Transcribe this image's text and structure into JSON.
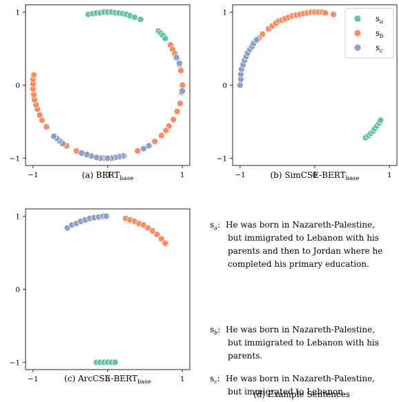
{
  "colors": {
    "sa": "#66c2a5",
    "sb": "#fc8d62",
    "sc": "#8da0cb"
  },
  "legend": [
    {
      "key": "sa",
      "base": "s",
      "sub": "a"
    },
    {
      "key": "sb",
      "base": "s",
      "sub": "b"
    },
    {
      "key": "sc",
      "base": "s",
      "sub": "c"
    }
  ],
  "chart_data": [
    {
      "type": "scatter",
      "caption": {
        "prefix": "(a) BERT",
        "sub": "base"
      },
      "xlim": [
        -1.1,
        1.1
      ],
      "ylim": [
        -1.1,
        1.1
      ],
      "xticks": [
        -1,
        0,
        1
      ],
      "yticks": [
        -1,
        0,
        1
      ],
      "grid": false,
      "legend": null,
      "series": [
        {
          "key": "sa",
          "points": [
            [
              -0.26,
              0.97
            ],
            [
              -0.2,
              0.98
            ],
            [
              -0.15,
              0.99
            ],
            [
              -0.1,
              0.99
            ],
            [
              -0.05,
              1.0
            ],
            [
              0.0,
              1.0
            ],
            [
              0.05,
              1.0
            ],
            [
              0.1,
              0.99
            ],
            [
              0.15,
              0.99
            ],
            [
              0.2,
              0.98
            ],
            [
              0.25,
              0.97
            ],
            [
              0.3,
              0.95
            ],
            [
              0.36,
              0.93
            ],
            [
              0.44,
              0.9
            ],
            [
              0.68,
              0.74
            ],
            [
              0.71,
              0.71
            ],
            [
              0.74,
              0.68
            ],
            [
              0.77,
              0.64
            ]
          ]
        },
        {
          "key": "sb",
          "points": [
            [
              0.84,
              0.55
            ],
            [
              0.87,
              0.49
            ],
            [
              0.9,
              0.43
            ],
            [
              0.93,
              0.37
            ],
            [
              0.96,
              0.28
            ],
            [
              0.98,
              0.2
            ],
            [
              1.0,
              0.0
            ],
            [
              0.99,
              -0.1
            ],
            [
              0.97,
              -0.25
            ],
            [
              0.93,
              -0.36
            ],
            [
              0.88,
              -0.47
            ],
            [
              0.82,
              -0.56
            ],
            [
              0.78,
              -0.62
            ],
            [
              0.72,
              -0.69
            ],
            [
              0.63,
              -0.77
            ],
            [
              0.55,
              -0.83
            ],
            [
              0.48,
              -0.87
            ],
            [
              0.4,
              -0.9
            ],
            [
              0.22,
              -0.97
            ],
            [
              -0.05,
              -1.0
            ],
            [
              -0.42,
              -0.9
            ],
            [
              -0.55,
              -0.83
            ],
            [
              -0.62,
              -0.78
            ],
            [
              -0.82,
              -0.57
            ],
            [
              -0.88,
              -0.48
            ],
            [
              -0.91,
              -0.41
            ],
            [
              -0.94,
              -0.33
            ],
            [
              -0.96,
              -0.27
            ],
            [
              -0.98,
              -0.2
            ],
            [
              -0.99,
              -0.13
            ],
            [
              -1.0,
              -0.05
            ],
            [
              -1.0,
              0.02
            ],
            [
              -1.0,
              0.08
            ],
            [
              -0.99,
              0.14
            ]
          ]
        },
        {
          "key": "sc",
          "points": [
            [
              0.96,
              0.3
            ],
            [
              1.0,
              -0.08
            ],
            [
              0.92,
              0.38
            ],
            [
              0.55,
              -0.83
            ],
            [
              0.48,
              -0.87
            ],
            [
              0.2,
              -0.97
            ],
            [
              0.15,
              -0.98
            ],
            [
              0.1,
              -0.99
            ],
            [
              0.05,
              -1.0
            ],
            [
              0.0,
              -1.0
            ],
            [
              -0.1,
              -1.0
            ],
            [
              -0.15,
              -0.99
            ],
            [
              -0.22,
              -0.97
            ],
            [
              -0.28,
              -0.95
            ],
            [
              -0.35,
              -0.93
            ],
            [
              -0.6,
              -0.8
            ],
            [
              -0.65,
              -0.76
            ],
            [
              -0.68,
              -0.73
            ],
            [
              -0.72,
              -0.7
            ]
          ]
        }
      ]
    },
    {
      "type": "scatter",
      "caption": {
        "prefix": "(b) SimCSE-BERT",
        "sub": "base"
      },
      "xlim": [
        -1.1,
        1.1
      ],
      "ylim": [
        -1.1,
        1.1
      ],
      "xticks": [
        -1,
        0,
        1
      ],
      "yticks": [
        -1,
        0,
        1
      ],
      "grid": false,
      "legend": "top-right",
      "series": [
        {
          "key": "sa",
          "points": [
            [
              0.68,
              -0.72
            ],
            [
              0.72,
              -0.69
            ],
            [
              0.75,
              -0.66
            ],
            [
              0.78,
              -0.63
            ],
            [
              0.8,
              -0.6
            ],
            [
              0.83,
              -0.56
            ],
            [
              0.86,
              -0.52
            ],
            [
              0.88,
              -0.48
            ]
          ]
        },
        {
          "key": "sb",
          "points": [
            [
              -0.75,
              0.64
            ],
            [
              -0.7,
              0.7
            ],
            [
              -0.62,
              0.77
            ],
            [
              -0.57,
              0.81
            ],
            [
              -0.52,
              0.85
            ],
            [
              -0.48,
              0.88
            ],
            [
              -0.44,
              0.89
            ],
            [
              -0.4,
              0.91
            ],
            [
              -0.35,
              0.93
            ],
            [
              -0.3,
              0.95
            ],
            [
              -0.25,
              0.96
            ],
            [
              -0.2,
              0.97
            ],
            [
              -0.15,
              0.98
            ],
            [
              -0.1,
              0.99
            ],
            [
              -0.05,
              1.0
            ],
            [
              0.0,
              1.0
            ],
            [
              0.05,
              1.0
            ],
            [
              0.1,
              1.0
            ],
            [
              0.14,
              0.99
            ],
            [
              0.25,
              0.97
            ]
          ]
        },
        {
          "key": "sc",
          "points": [
            [
              -1.0,
              0.0
            ],
            [
              -0.99,
              0.08
            ],
            [
              -0.99,
              0.15
            ],
            [
              -0.98,
              0.22
            ],
            [
              -0.96,
              0.28
            ],
            [
              -0.94,
              0.34
            ],
            [
              -0.92,
              0.39
            ],
            [
              -0.9,
              0.44
            ],
            [
              -0.87,
              0.49
            ],
            [
              -0.84,
              0.53
            ],
            [
              -0.82,
              0.57
            ],
            [
              -0.78,
              0.62
            ]
          ]
        }
      ]
    },
    {
      "type": "scatter",
      "caption": {
        "prefix": "(c) ArcCSE-BERT",
        "sub": "base"
      },
      "xlim": [
        -1.1,
        1.1
      ],
      "ylim": [
        -1.1,
        1.1
      ],
      "xticks": [
        -1,
        0,
        1
      ],
      "yticks": [
        -1,
        0,
        1
      ],
      "grid": false,
      "legend": null,
      "series": [
        {
          "key": "sa",
          "points": [
            [
              -0.15,
              -1.0
            ],
            [
              -0.1,
              -1.0
            ],
            [
              -0.05,
              -1.0
            ],
            [
              0.0,
              -1.0
            ],
            [
              0.05,
              -1.0
            ],
            [
              0.1,
              -1.0
            ]
          ]
        },
        {
          "key": "sb",
          "points": [
            [
              0.24,
              0.97
            ],
            [
              0.3,
              0.95
            ],
            [
              0.36,
              0.93
            ],
            [
              0.42,
              0.9
            ],
            [
              0.48,
              0.88
            ],
            [
              0.54,
              0.84
            ],
            [
              0.6,
              0.8
            ],
            [
              0.66,
              0.75
            ],
            [
              0.72,
              0.69
            ],
            [
              0.77,
              0.63
            ]
          ]
        },
        {
          "key": "sc",
          "points": [
            [
              -0.54,
              0.84
            ],
            [
              -0.48,
              0.88
            ],
            [
              -0.42,
              0.9
            ],
            [
              -0.36,
              0.93
            ],
            [
              -0.3,
              0.95
            ],
            [
              -0.24,
              0.97
            ],
            [
              -0.18,
              0.98
            ],
            [
              -0.12,
              0.99
            ],
            [
              -0.06,
              1.0
            ],
            [
              -0.02,
              1.0
            ]
          ]
        }
      ]
    }
  ],
  "sentences": [
    {
      "label_base": "s",
      "label_sub": "a",
      "lines": [
        "He was born in Nazareth-Palestine,",
        "but immigrated to Lebanon with his",
        "parents and then to Jordan where he",
        "completed his primary education."
      ]
    },
    {
      "label_base": "s",
      "label_sub": "b",
      "lines": [
        "He was born in Nazareth-Palestine,",
        "but immigrated to Lebanon with his",
        "parents."
      ]
    },
    {
      "label_base": "s",
      "label_sub": "c",
      "lines": [
        "He was born in Nazareth-Palestine,",
        "but immigrated to Lebanon."
      ]
    }
  ],
  "sentences_caption": "(d) Example Sentences"
}
